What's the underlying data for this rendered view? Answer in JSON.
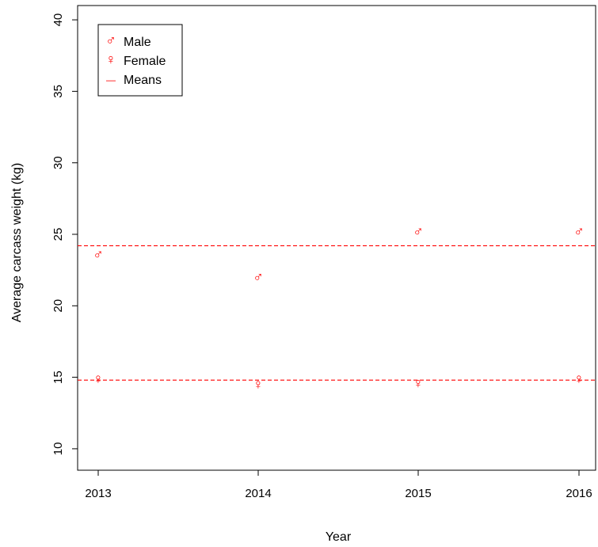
{
  "chart_data": {
    "type": "scatter",
    "xlabel": "Year",
    "ylabel": "Average carcass weight (kg)",
    "x": [
      2013,
      2014,
      2015,
      2016
    ],
    "x_tick_labels": [
      "2013",
      "2014",
      "2015",
      "2016"
    ],
    "ylim": [
      8.5,
      41
    ],
    "y_ticks": [
      10,
      15,
      20,
      25,
      30,
      35,
      40
    ],
    "y_tick_labels": [
      "10",
      "15",
      "20",
      "25",
      "30",
      "35",
      "40"
    ],
    "grid": false,
    "series": [
      {
        "name": "Male",
        "symbol": "♂",
        "values": [
          23.6,
          22.0,
          25.2,
          25.2
        ],
        "color": "#ff0000"
      },
      {
        "name": "Female",
        "symbol": "♀",
        "values": [
          14.9,
          14.5,
          14.6,
          14.9
        ],
        "color": "#ff0000"
      }
    ],
    "reference_lines": [
      {
        "name": "Means",
        "orientation": "horizontal",
        "values": [
          24.2,
          14.8
        ],
        "style": "dashed",
        "color": "#ff0000"
      }
    ],
    "legend": {
      "position": "top-left",
      "entries": [
        {
          "label": "Male",
          "symbol": "♂"
        },
        {
          "label": "Female",
          "symbol": "♀"
        },
        {
          "label": "Means",
          "symbol": "—"
        }
      ]
    }
  }
}
